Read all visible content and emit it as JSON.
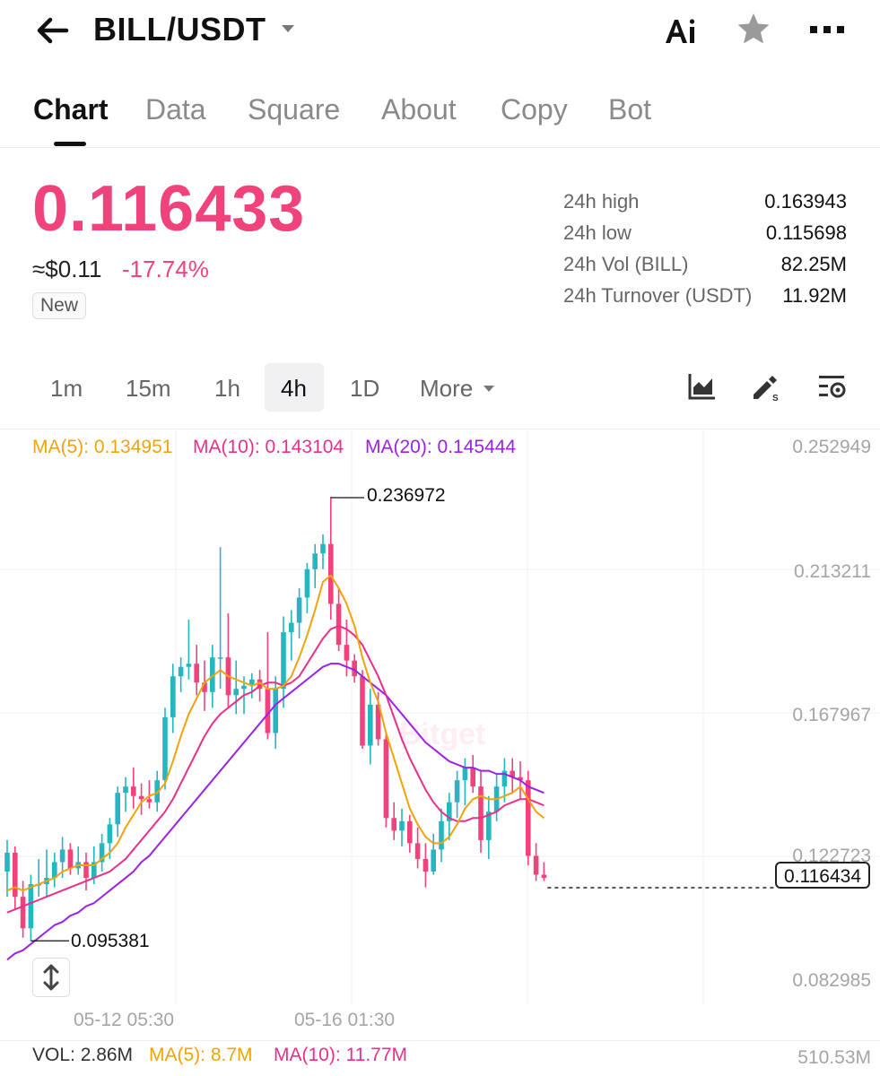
{
  "header": {
    "pair": "BILL/USDT"
  },
  "tabs": [
    {
      "label": "Chart"
    },
    {
      "label": "Data"
    },
    {
      "label": "Square"
    },
    {
      "label": "About"
    },
    {
      "label": "Copy"
    },
    {
      "label": "Bot"
    }
  ],
  "price": {
    "last": "0.116433",
    "usd": "≈$0.11",
    "change": "-17.74%",
    "badge": "New"
  },
  "stats": [
    {
      "label": "24h high",
      "value": "0.163943"
    },
    {
      "label": "24h low",
      "value": "0.115698"
    },
    {
      "label": "24h Vol (BILL)",
      "value": "82.25M"
    },
    {
      "label": "24h Turnover (USDT)",
      "value": "11.92M"
    }
  ],
  "timeframes": [
    {
      "label": "1m"
    },
    {
      "label": "15m"
    },
    {
      "label": "1h"
    },
    {
      "label": "4h"
    },
    {
      "label": "1D"
    },
    {
      "label": "More"
    }
  ],
  "ma_legend": {
    "ma5": "MA(5): 0.134951",
    "ma10": "MA(10): 0.143104",
    "ma20": "MA(20): 0.145444"
  },
  "colors": {
    "up": "#26b6c2",
    "down": "#f0437c",
    "ma5": "#f0a30a",
    "ma10": "#e8308a",
    "ma20": "#9b21e6"
  },
  "chart": {
    "y_ticks": [
      "0.252949",
      "0.213211",
      "0.167967",
      "0.122723",
      "0.082985"
    ],
    "x_ticks": [
      "05-12 05:30",
      "05-16 01:30"
    ],
    "high_marker": "0.236972",
    "low_marker": "0.095381",
    "current_price": "0.116434",
    "watermark": "Bitget"
  },
  "volume": {
    "vol": "VOL: 2.86M",
    "ma5": "MA(5): 8.7M",
    "ma10": "MA(10): 11.77M",
    "max": "510.53M"
  },
  "chart_data": {
    "type": "candlestick",
    "ylim": [
      0.082985,
      0.252949
    ],
    "y_ticks": [
      0.252949,
      0.213211,
      0.167967,
      0.122723,
      0.082985
    ],
    "x_ticks": [
      "05-12 05:30",
      "05-16 01:30"
    ],
    "candles": [
      {
        "o": 0.118,
        "h": 0.128,
        "l": 0.11,
        "c": 0.124
      },
      {
        "o": 0.124,
        "h": 0.126,
        "l": 0.106,
        "c": 0.11
      },
      {
        "o": 0.11,
        "h": 0.115,
        "l": 0.097,
        "c": 0.1
      },
      {
        "o": 0.1,
        "h": 0.117,
        "l": 0.096,
        "c": 0.114
      },
      {
        "o": 0.114,
        "h": 0.122,
        "l": 0.11,
        "c": 0.114
      },
      {
        "o": 0.114,
        "h": 0.125,
        "l": 0.11,
        "c": 0.116
      },
      {
        "o": 0.116,
        "h": 0.124,
        "l": 0.113,
        "c": 0.121
      },
      {
        "o": 0.121,
        "h": 0.129,
        "l": 0.116,
        "c": 0.125
      },
      {
        "o": 0.125,
        "h": 0.127,
        "l": 0.117,
        "c": 0.119
      },
      {
        "o": 0.119,
        "h": 0.126,
        "l": 0.117,
        "c": 0.121
      },
      {
        "o": 0.121,
        "h": 0.124,
        "l": 0.112,
        "c": 0.116
      },
      {
        "o": 0.116,
        "h": 0.126,
        "l": 0.114,
        "c": 0.121
      },
      {
        "o": 0.121,
        "h": 0.13,
        "l": 0.118,
        "c": 0.127
      },
      {
        "o": 0.127,
        "h": 0.135,
        "l": 0.122,
        "c": 0.133
      },
      {
        "o": 0.133,
        "h": 0.145,
        "l": 0.129,
        "c": 0.143
      },
      {
        "o": 0.143,
        "h": 0.148,
        "l": 0.137,
        "c": 0.145
      },
      {
        "o": 0.145,
        "h": 0.151,
        "l": 0.138,
        "c": 0.142
      },
      {
        "o": 0.142,
        "h": 0.146,
        "l": 0.136,
        "c": 0.141
      },
      {
        "o": 0.141,
        "h": 0.147,
        "l": 0.138,
        "c": 0.14
      },
      {
        "o": 0.14,
        "h": 0.15,
        "l": 0.137,
        "c": 0.147
      },
      {
        "o": 0.147,
        "h": 0.17,
        "l": 0.144,
        "c": 0.167
      },
      {
        "o": 0.167,
        "h": 0.184,
        "l": 0.162,
        "c": 0.18
      },
      {
        "o": 0.18,
        "h": 0.186,
        "l": 0.175,
        "c": 0.183
      },
      {
        "o": 0.183,
        "h": 0.198,
        "l": 0.179,
        "c": 0.184
      },
      {
        "o": 0.184,
        "h": 0.19,
        "l": 0.174,
        "c": 0.178
      },
      {
        "o": 0.178,
        "h": 0.185,
        "l": 0.169,
        "c": 0.175
      },
      {
        "o": 0.175,
        "h": 0.19,
        "l": 0.17,
        "c": 0.186
      },
      {
        "o": 0.186,
        "h": 0.221,
        "l": 0.176,
        "c": 0.186
      },
      {
        "o": 0.186,
        "h": 0.2,
        "l": 0.17,
        "c": 0.174
      },
      {
        "o": 0.174,
        "h": 0.185,
        "l": 0.168,
        "c": 0.176
      },
      {
        "o": 0.176,
        "h": 0.18,
        "l": 0.168,
        "c": 0.177
      },
      {
        "o": 0.177,
        "h": 0.181,
        "l": 0.173,
        "c": 0.179
      },
      {
        "o": 0.179,
        "h": 0.182,
        "l": 0.172,
        "c": 0.176
      },
      {
        "o": 0.176,
        "h": 0.194,
        "l": 0.16,
        "c": 0.162
      },
      {
        "o": 0.162,
        "h": 0.18,
        "l": 0.157,
        "c": 0.176
      },
      {
        "o": 0.176,
        "h": 0.199,
        "l": 0.17,
        "c": 0.194
      },
      {
        "o": 0.194,
        "h": 0.201,
        "l": 0.185,
        "c": 0.197
      },
      {
        "o": 0.197,
        "h": 0.208,
        "l": 0.192,
        "c": 0.205
      },
      {
        "o": 0.205,
        "h": 0.216,
        "l": 0.2,
        "c": 0.214
      },
      {
        "o": 0.214,
        "h": 0.222,
        "l": 0.208,
        "c": 0.219
      },
      {
        "o": 0.219,
        "h": 0.225,
        "l": 0.214,
        "c": 0.222
      },
      {
        "o": 0.222,
        "h": 0.237,
        "l": 0.198,
        "c": 0.203
      },
      {
        "o": 0.203,
        "h": 0.208,
        "l": 0.188,
        "c": 0.19
      },
      {
        "o": 0.19,
        "h": 0.198,
        "l": 0.18,
        "c": 0.185
      },
      {
        "o": 0.185,
        "h": 0.187,
        "l": 0.178,
        "c": 0.18
      },
      {
        "o": 0.18,
        "h": 0.182,
        "l": 0.157,
        "c": 0.158
      },
      {
        "o": 0.158,
        "h": 0.176,
        "l": 0.152,
        "c": 0.171
      },
      {
        "o": 0.171,
        "h": 0.175,
        "l": 0.158,
        "c": 0.16
      },
      {
        "o": 0.16,
        "h": 0.162,
        "l": 0.132,
        "c": 0.135
      },
      {
        "o": 0.135,
        "h": 0.14,
        "l": 0.128,
        "c": 0.131
      },
      {
        "o": 0.131,
        "h": 0.138,
        "l": 0.126,
        "c": 0.134
      },
      {
        "o": 0.134,
        "h": 0.136,
        "l": 0.124,
        "c": 0.127
      },
      {
        "o": 0.127,
        "h": 0.132,
        "l": 0.119,
        "c": 0.122
      },
      {
        "o": 0.122,
        "h": 0.127,
        "l": 0.113,
        "c": 0.118
      },
      {
        "o": 0.118,
        "h": 0.13,
        "l": 0.117,
        "c": 0.125
      },
      {
        "o": 0.125,
        "h": 0.138,
        "l": 0.121,
        "c": 0.134
      },
      {
        "o": 0.134,
        "h": 0.143,
        "l": 0.128,
        "c": 0.14
      },
      {
        "o": 0.14,
        "h": 0.15,
        "l": 0.135,
        "c": 0.147
      },
      {
        "o": 0.147,
        "h": 0.154,
        "l": 0.139,
        "c": 0.151
      },
      {
        "o": 0.151,
        "h": 0.155,
        "l": 0.143,
        "c": 0.145
      },
      {
        "o": 0.145,
        "h": 0.15,
        "l": 0.124,
        "c": 0.128
      },
      {
        "o": 0.128,
        "h": 0.142,
        "l": 0.122,
        "c": 0.137
      },
      {
        "o": 0.137,
        "h": 0.149,
        "l": 0.134,
        "c": 0.145
      },
      {
        "o": 0.145,
        "h": 0.154,
        "l": 0.14,
        "c": 0.15
      },
      {
        "o": 0.15,
        "h": 0.154,
        "l": 0.143,
        "c": 0.148
      },
      {
        "o": 0.148,
        "h": 0.153,
        "l": 0.141,
        "c": 0.147
      },
      {
        "o": 0.147,
        "h": 0.15,
        "l": 0.12,
        "c": 0.123
      },
      {
        "o": 0.123,
        "h": 0.127,
        "l": 0.115,
        "c": 0.117
      },
      {
        "o": 0.117,
        "h": 0.121,
        "l": 0.115,
        "c": 0.116
      }
    ],
    "ma5": [
      0.112,
      0.113,
      0.112,
      0.113,
      0.114,
      0.115,
      0.116,
      0.118,
      0.119,
      0.12,
      0.12,
      0.12,
      0.122,
      0.124,
      0.127,
      0.132,
      0.136,
      0.14,
      0.142,
      0.143,
      0.146,
      0.153,
      0.161,
      0.168,
      0.173,
      0.178,
      0.18,
      0.182,
      0.18,
      0.179,
      0.178,
      0.177,
      0.178,
      0.176,
      0.176,
      0.177,
      0.18,
      0.186,
      0.193,
      0.201,
      0.21,
      0.212,
      0.208,
      0.203,
      0.196,
      0.186,
      0.178,
      0.172,
      0.162,
      0.154,
      0.146,
      0.138,
      0.133,
      0.129,
      0.127,
      0.127,
      0.129,
      0.133,
      0.138,
      0.141,
      0.142,
      0.141,
      0.141,
      0.142,
      0.143,
      0.145,
      0.141,
      0.137,
      0.135
    ],
    "ma10": [
      0.105,
      0.106,
      0.107,
      0.108,
      0.109,
      0.11,
      0.111,
      0.112,
      0.113,
      0.114,
      0.115,
      0.116,
      0.117,
      0.118,
      0.12,
      0.122,
      0.125,
      0.128,
      0.131,
      0.134,
      0.137,
      0.141,
      0.146,
      0.151,
      0.156,
      0.161,
      0.165,
      0.168,
      0.17,
      0.172,
      0.174,
      0.175,
      0.177,
      0.178,
      0.178,
      0.177,
      0.178,
      0.18,
      0.184,
      0.188,
      0.192,
      0.195,
      0.196,
      0.195,
      0.193,
      0.19,
      0.185,
      0.18,
      0.174,
      0.167,
      0.16,
      0.154,
      0.149,
      0.144,
      0.14,
      0.137,
      0.135,
      0.134,
      0.134,
      0.135,
      0.135,
      0.136,
      0.137,
      0.139,
      0.14,
      0.141,
      0.141,
      0.14,
      0.139
    ],
    "ma20": [
      0.09,
      0.092,
      0.093,
      0.095,
      0.097,
      0.099,
      0.101,
      0.102,
      0.104,
      0.105,
      0.107,
      0.108,
      0.11,
      0.112,
      0.114,
      0.116,
      0.118,
      0.121,
      0.123,
      0.126,
      0.129,
      0.132,
      0.135,
      0.138,
      0.141,
      0.144,
      0.147,
      0.15,
      0.153,
      0.156,
      0.159,
      0.162,
      0.165,
      0.168,
      0.171,
      0.173,
      0.175,
      0.177,
      0.179,
      0.181,
      0.183,
      0.184,
      0.184,
      0.183,
      0.182,
      0.18,
      0.178,
      0.176,
      0.174,
      0.171,
      0.168,
      0.165,
      0.162,
      0.159,
      0.157,
      0.155,
      0.153,
      0.152,
      0.151,
      0.151,
      0.15,
      0.15,
      0.149,
      0.149,
      0.148,
      0.147,
      0.145,
      0.144,
      0.143
    ]
  }
}
